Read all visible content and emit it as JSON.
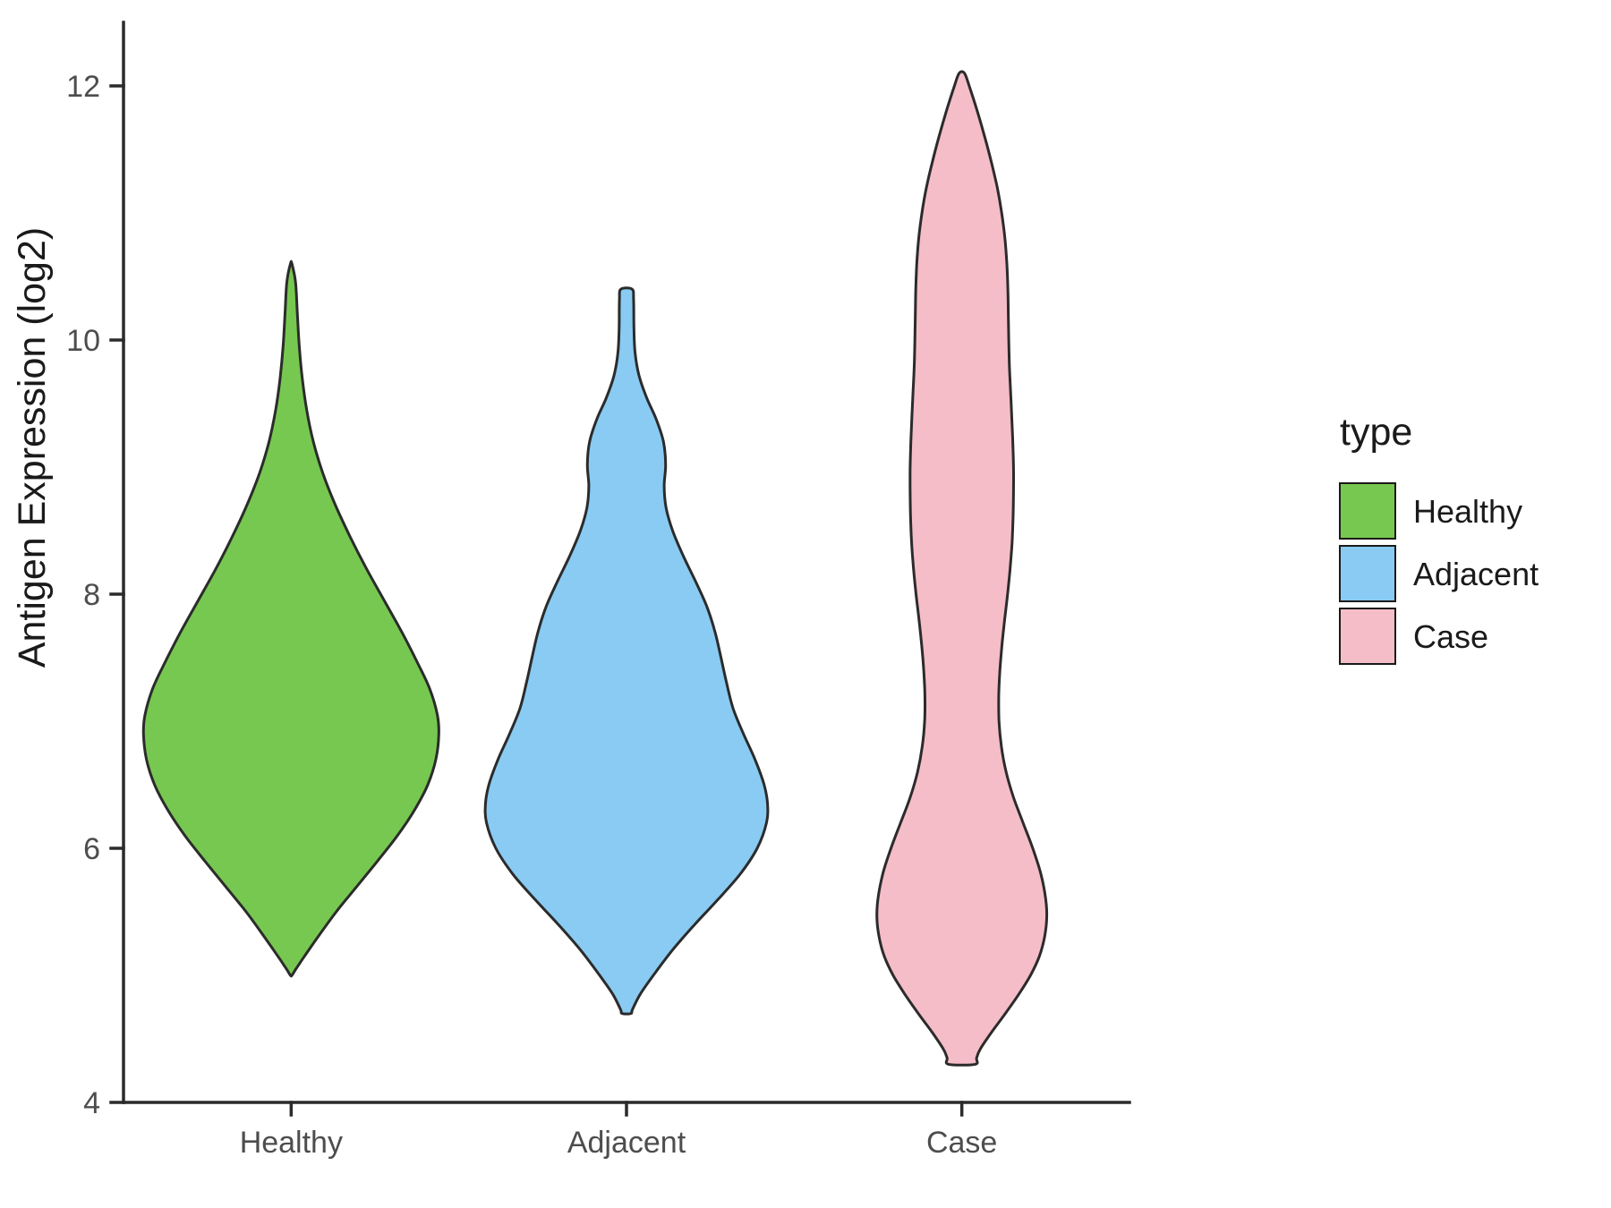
{
  "chart_data": {
    "type": "violin",
    "title": "",
    "xlabel": "",
    "ylabel": "Antigen Expression (log2)",
    "legend_title": "type",
    "legend_position": "right",
    "ylim": [
      4,
      12.5
    ],
    "y_ticks": [
      4,
      6,
      8,
      10,
      12
    ],
    "categories": [
      "Healthy",
      "Adjacent",
      "Case"
    ],
    "background_color": "#FFFFFF",
    "axis_color": "#2B2B2B",
    "tick_label_color": "#4D4D4D",
    "text_color": "#1A1A1A",
    "density_units": "each density entry is [y_value, half_width] with half_width normalized to the widest violin",
    "series": [
      {
        "name": "Healthy",
        "color": "#77C850",
        "y_min": 5.0,
        "y_max": 10.6,
        "peak_y": 6.9,
        "density": [
          [
            10.6,
            0.005
          ],
          [
            10.45,
            0.03
          ],
          [
            10.2,
            0.042
          ],
          [
            9.95,
            0.055
          ],
          [
            9.7,
            0.075
          ],
          [
            9.45,
            0.105
          ],
          [
            9.2,
            0.15
          ],
          [
            8.95,
            0.215
          ],
          [
            8.7,
            0.3
          ],
          [
            8.45,
            0.4
          ],
          [
            8.2,
            0.51
          ],
          [
            7.95,
            0.63
          ],
          [
            7.7,
            0.75
          ],
          [
            7.45,
            0.86
          ],
          [
            7.25,
            0.94
          ],
          [
            7.05,
            0.99
          ],
          [
            6.9,
            1.0
          ],
          [
            6.7,
            0.98
          ],
          [
            6.5,
            0.925
          ],
          [
            6.3,
            0.835
          ],
          [
            6.1,
            0.72
          ],
          [
            5.9,
            0.585
          ],
          [
            5.7,
            0.445
          ],
          [
            5.5,
            0.305
          ],
          [
            5.3,
            0.18
          ],
          [
            5.15,
            0.09
          ],
          [
            5.05,
            0.032
          ],
          [
            5.0,
            0.005
          ]
        ]
      },
      {
        "name": "Adjacent",
        "color": "#89CBF2",
        "y_min": 4.7,
        "y_max": 10.4,
        "peak_y": 6.35,
        "density": [
          [
            10.4,
            0.038
          ],
          [
            10.32,
            0.048
          ],
          [
            10.1,
            0.05
          ],
          [
            9.9,
            0.058
          ],
          [
            9.72,
            0.085
          ],
          [
            9.55,
            0.135
          ],
          [
            9.38,
            0.2
          ],
          [
            9.2,
            0.25
          ],
          [
            9.02,
            0.265
          ],
          [
            8.85,
            0.255
          ],
          [
            8.68,
            0.268
          ],
          [
            8.5,
            0.312
          ],
          [
            8.3,
            0.385
          ],
          [
            8.1,
            0.468
          ],
          [
            7.9,
            0.545
          ],
          [
            7.7,
            0.6
          ],
          [
            7.5,
            0.64
          ],
          [
            7.3,
            0.678
          ],
          [
            7.1,
            0.722
          ],
          [
            6.9,
            0.792
          ],
          [
            6.7,
            0.87
          ],
          [
            6.5,
            0.932
          ],
          [
            6.35,
            0.955
          ],
          [
            6.2,
            0.948
          ],
          [
            6.0,
            0.885
          ],
          [
            5.8,
            0.772
          ],
          [
            5.6,
            0.622
          ],
          [
            5.4,
            0.462
          ],
          [
            5.2,
            0.312
          ],
          [
            5.0,
            0.182
          ],
          [
            4.85,
            0.092
          ],
          [
            4.73,
            0.04
          ],
          [
            4.7,
            0.03
          ]
        ]
      },
      {
        "name": "Case",
        "color": "#F5BDC8",
        "y_min": 4.3,
        "y_max": 12.1,
        "peak_y": 5.5,
        "density": [
          [
            12.1,
            0.018
          ],
          [
            12.0,
            0.05
          ],
          [
            11.8,
            0.105
          ],
          [
            11.6,
            0.155
          ],
          [
            11.4,
            0.2
          ],
          [
            11.2,
            0.24
          ],
          [
            11.0,
            0.27
          ],
          [
            10.8,
            0.292
          ],
          [
            10.6,
            0.305
          ],
          [
            10.4,
            0.312
          ],
          [
            10.2,
            0.315
          ],
          [
            10.0,
            0.318
          ],
          [
            9.8,
            0.322
          ],
          [
            9.6,
            0.33
          ],
          [
            9.4,
            0.338
          ],
          [
            9.2,
            0.345
          ],
          [
            9.0,
            0.35
          ],
          [
            8.8,
            0.35
          ],
          [
            8.6,
            0.347
          ],
          [
            8.4,
            0.34
          ],
          [
            8.2,
            0.327
          ],
          [
            8.0,
            0.31
          ],
          [
            7.8,
            0.29
          ],
          [
            7.6,
            0.272
          ],
          [
            7.4,
            0.258
          ],
          [
            7.2,
            0.25
          ],
          [
            7.0,
            0.252
          ],
          [
            6.8,
            0.268
          ],
          [
            6.6,
            0.3
          ],
          [
            6.4,
            0.35
          ],
          [
            6.2,
            0.415
          ],
          [
            6.0,
            0.48
          ],
          [
            5.8,
            0.535
          ],
          [
            5.6,
            0.568
          ],
          [
            5.45,
            0.575
          ],
          [
            5.3,
            0.56
          ],
          [
            5.15,
            0.525
          ],
          [
            5.0,
            0.465
          ],
          [
            4.85,
            0.385
          ],
          [
            4.7,
            0.295
          ],
          [
            4.55,
            0.2
          ],
          [
            4.42,
            0.125
          ],
          [
            4.35,
            0.1
          ],
          [
            4.3,
            0.09
          ]
        ]
      }
    ]
  }
}
